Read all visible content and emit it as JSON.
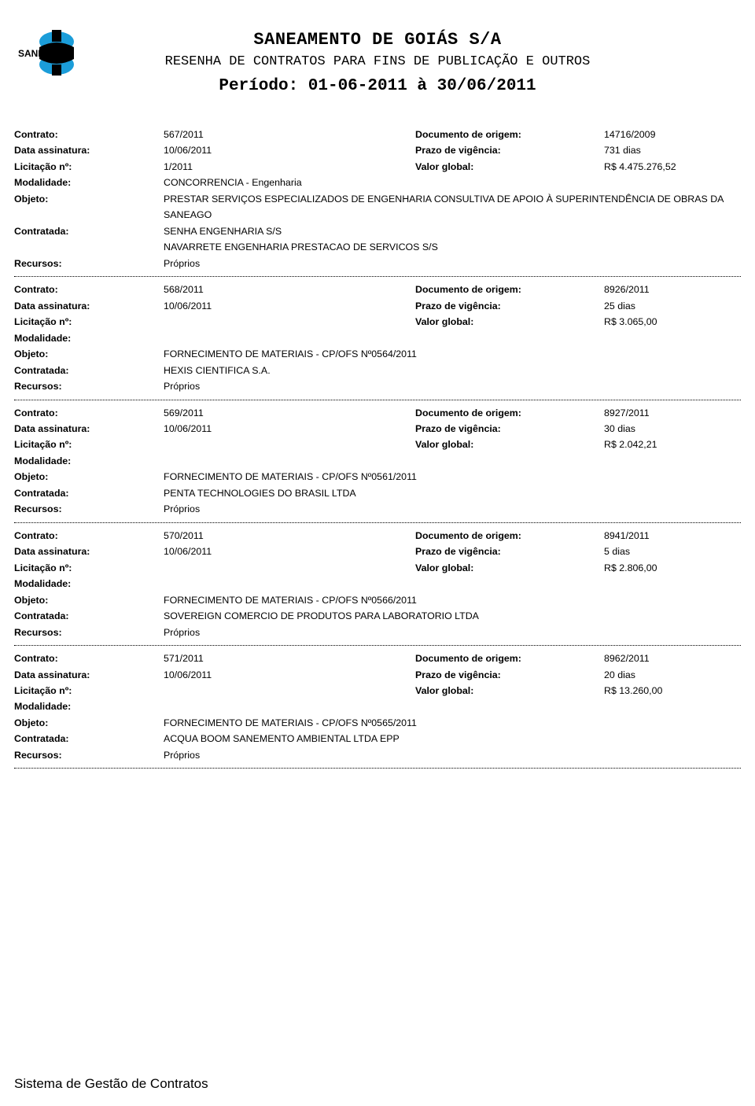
{
  "header": {
    "company_name": "SANEAMENTO DE GOIÁS S/A",
    "subtitle": "RESENHA DE CONTRATOS PARA FINS DE PUBLICAÇÃO E OUTROS",
    "period": "Período: 01-06-2011 à 30/06/2011",
    "logo_text": "SANEAGO",
    "logo_colors": {
      "blue": "#1b9dd9",
      "black": "#000000"
    }
  },
  "labels": {
    "contrato": "Contrato:",
    "data_assinatura": "Data assinatura:",
    "licitacao": "Licitação nº:",
    "modalidade": "Modalidade:",
    "objeto": "Objeto:",
    "contratada": "Contratada:",
    "recursos": "Recursos:",
    "documento_origem": "Documento de origem:",
    "prazo_vigencia": "Prazo de vigência:",
    "valor_global": "Valor global:"
  },
  "contracts": [
    {
      "contrato": "567/2011",
      "documento_origem": "14716/2009",
      "data_assinatura": "10/06/2011",
      "prazo_vigencia": "731 dias",
      "licitacao": "1/2011",
      "valor_global": "R$ 4.475.276,52",
      "modalidade": "CONCORRENCIA - Engenharia",
      "objeto": "PRESTAR SERVIÇOS ESPECIALIZADOS DE ENGENHARIA  CONSULTIVA DE APOIO À SUPERINTENDÊNCIA DE OBRAS DA SANEAGO",
      "contratada": [
        "SENHA ENGENHARIA S/S",
        "NAVARRETE ENGENHARIA PRESTACAO DE SERVICOS S/S"
      ],
      "recursos": "Próprios"
    },
    {
      "contrato": "568/2011",
      "documento_origem": "8926/2011",
      "data_assinatura": "10/06/2011",
      "prazo_vigencia": "25 dias",
      "licitacao": "",
      "valor_global": "R$ 3.065,00",
      "modalidade": "",
      "objeto": "FORNECIMENTO DE MATERIAIS - CP/OFS Nº0564/2011",
      "contratada": [
        "HEXIS CIENTIFICA S.A."
      ],
      "recursos": "Próprios"
    },
    {
      "contrato": "569/2011",
      "documento_origem": "8927/2011",
      "data_assinatura": "10/06/2011",
      "prazo_vigencia": "30 dias",
      "licitacao": "",
      "valor_global": "R$ 2.042,21",
      "modalidade": "",
      "objeto": "FORNECIMENTO DE MATERIAIS - CP/OFS Nº0561/2011",
      "contratada": [
        "PENTA TECHNOLOGIES DO BRASIL LTDA"
      ],
      "recursos": "Próprios"
    },
    {
      "contrato": "570/2011",
      "documento_origem": "8941/2011",
      "data_assinatura": "10/06/2011",
      "prazo_vigencia": "5 dias",
      "licitacao": "",
      "valor_global": "R$ 2.806,00",
      "modalidade": "",
      "objeto": "FORNECIMENTO DE MATERIAIS - CP/OFS Nº0566/2011",
      "contratada": [
        "SOVEREIGN COMERCIO DE PRODUTOS PARA LABORATORIO LTDA"
      ],
      "recursos": "Próprios"
    },
    {
      "contrato": "571/2011",
      "documento_origem": "8962/2011",
      "data_assinatura": "10/06/2011",
      "prazo_vigencia": "20 dias",
      "licitacao": "",
      "valor_global": "R$ 13.260,00",
      "modalidade": "",
      "objeto": "FORNECIMENTO DE MATERIAIS - CP/OFS Nº0565/2011",
      "contratada": [
        "ACQUA BOOM SANEMENTO AMBIENTAL LTDA EPP"
      ],
      "recursos": "Próprios"
    }
  ],
  "footer": "Sistema de Gestão de Contratos"
}
